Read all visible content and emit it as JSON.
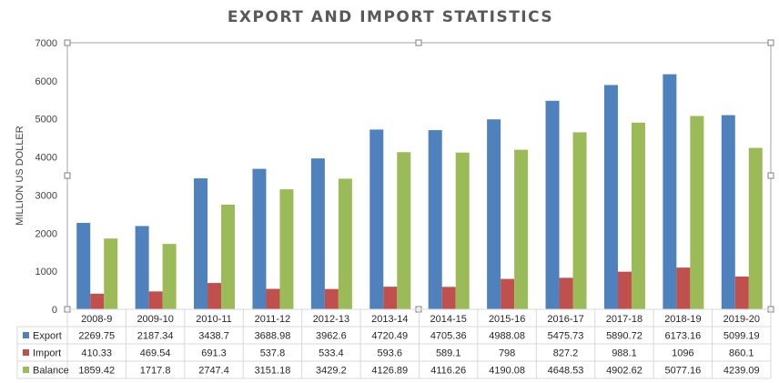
{
  "chart_data": {
    "type": "bar",
    "title": "EXPORT AND IMPORT STATISTICS",
    "xlabel": "",
    "ylabel": "MILLION US DOLLER",
    "ylim": [
      0,
      7000
    ],
    "yticks": [
      0,
      1000,
      2000,
      3000,
      4000,
      5000,
      6000,
      7000
    ],
    "grid": false,
    "legend": "data-table",
    "categories": [
      "2008-9",
      "2009-10",
      "2010-11",
      "2011-12",
      "2012-13",
      "2013-14",
      "2014-15",
      "2015-16",
      "2016-17",
      "2017-18",
      "2018-19",
      "2019-20"
    ],
    "series": [
      {
        "name": "Export",
        "color": "#4F81BD",
        "values": [
          2269.75,
          2187.34,
          3438.7,
          3688.98,
          3962.6,
          4720.49,
          4705.36,
          4988.08,
          5475.73,
          5890.72,
          6173.16,
          5099.19
        ],
        "labels": [
          "2269.75",
          "2187.34",
          "3438.7",
          "3688.98",
          "3962.6",
          "4720.49",
          "4705.36",
          "4988.08",
          "5475.73",
          "5890.72",
          "6173.16",
          "5099.19"
        ]
      },
      {
        "name": "Import",
        "color": "#C0504D",
        "values": [
          410.33,
          469.54,
          691.3,
          537.8,
          533.4,
          593.6,
          589.1,
          798,
          827.2,
          988.1,
          1096,
          860.1
        ],
        "labels": [
          "410.33",
          "469.54",
          "691.3",
          "537.8",
          "533.4",
          "593.6",
          "589.1",
          "798",
          "827.2",
          "988.1",
          "1096",
          "860.1"
        ]
      },
      {
        "name": "Balance",
        "color": "#9BBB59",
        "values": [
          1859.42,
          1717.8,
          2747.4,
          3151.18,
          3429.2,
          4126.89,
          4116.26,
          4190.08,
          4648.53,
          4902.62,
          5077.16,
          4239.09
        ],
        "labels": [
          "1859.42",
          "1717.8",
          "2747.4",
          "3151.18",
          "3429.2",
          "4126.89",
          "4116.26",
          "4190.08",
          "4648.53",
          "4902.62",
          "5077.16",
          "4239.09"
        ]
      }
    ]
  }
}
